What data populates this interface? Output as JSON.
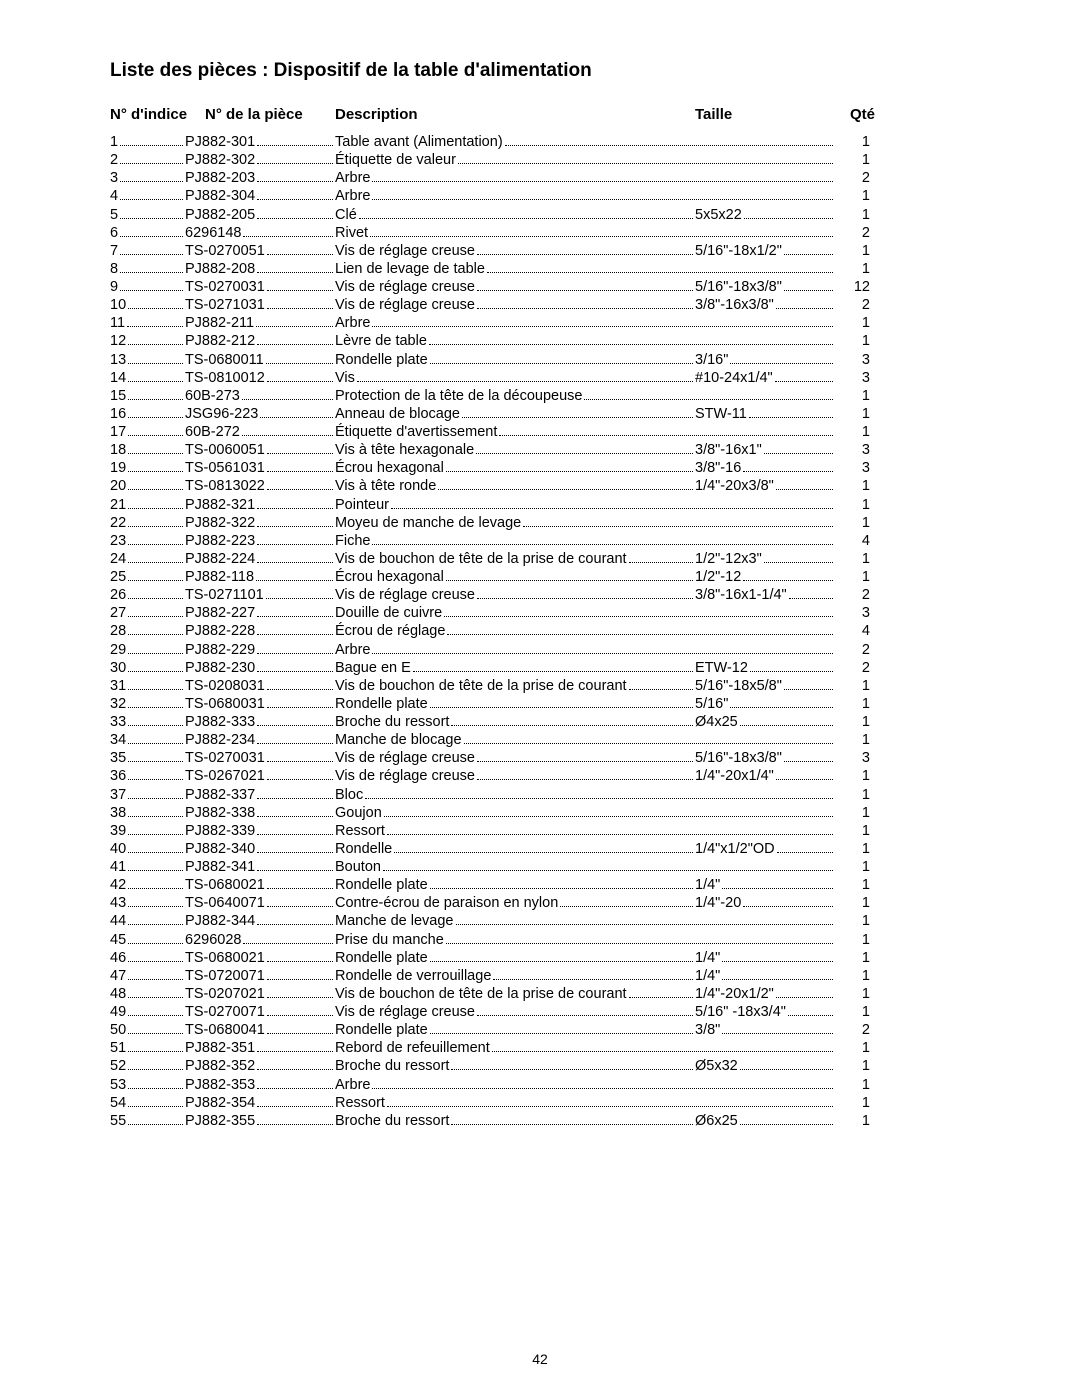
{
  "title": "Liste des pièces : Dispositif de la table d'alimentation",
  "page_number": "42",
  "headers": {
    "index": "N° d'indice",
    "part": "N° de la pièce",
    "description": "Description",
    "size": "Taille",
    "qty": "Qté"
  },
  "rows": [
    {
      "index": "1",
      "part": "PJ882-301",
      "description": "Table avant (Alimentation)",
      "size": "",
      "qty": "1"
    },
    {
      "index": "2",
      "part": "PJ882-302",
      "description": "Étiquette de valeur",
      "size": "",
      "qty": "1"
    },
    {
      "index": "3",
      "part": "PJ882-203",
      "description": "Arbre",
      "size": "",
      "qty": "2"
    },
    {
      "index": "4",
      "part": "PJ882-304",
      "description": "Arbre",
      "size": "",
      "qty": "1"
    },
    {
      "index": "5",
      "part": "PJ882-205",
      "description": "Clé",
      "size": "5x5x22",
      "qty": "1"
    },
    {
      "index": "6",
      "part": "6296148",
      "description": "Rivet",
      "size": "",
      "qty": "2"
    },
    {
      "index": "7",
      "part": "TS-0270051",
      "description": "Vis de réglage creuse",
      "size": "5/16\"-18x1/2\"",
      "qty": "1"
    },
    {
      "index": "8",
      "part": "PJ882-208",
      "description": "Lien de levage de table",
      "size": "",
      "qty": "1"
    },
    {
      "index": "9",
      "part": "TS-0270031",
      "description": "Vis de réglage creuse",
      "size": "5/16\"-18x3/8\"",
      "qty": "12"
    },
    {
      "index": "10",
      "part": "TS-0271031",
      "description": "Vis de réglage creuse",
      "size": "3/8\"-16x3/8\"",
      "qty": "2"
    },
    {
      "index": "11",
      "part": "PJ882-211",
      "description": "Arbre",
      "size": "",
      "qty": "1"
    },
    {
      "index": "12",
      "part": "PJ882-212",
      "description": "Lèvre de table",
      "size": "",
      "qty": "1"
    },
    {
      "index": "13",
      "part": "TS-0680011",
      "description": "Rondelle plate",
      "size": "3/16\"",
      "qty": "3"
    },
    {
      "index": "14",
      "part": "TS-0810012",
      "description": "Vis",
      "size": "#10-24x1/4\"",
      "qty": "3"
    },
    {
      "index": "15",
      "part": "60B-273",
      "description": "Protection de la tête de la découpeuse",
      "size": "",
      "qty": "1"
    },
    {
      "index": "16",
      "part": "JSG96-223",
      "description": "Anneau de blocage",
      "size": "STW-11",
      "qty": "1"
    },
    {
      "index": "17",
      "part": "60B-272",
      "description": "Étiquette d'avertissement",
      "size": "",
      "qty": "1"
    },
    {
      "index": "18",
      "part": "TS-0060051",
      "description": "Vis à tête hexagonale",
      "size": "3/8\"-16x1\"",
      "qty": "3"
    },
    {
      "index": "19",
      "part": "TS-0561031",
      "description": "Écrou hexagonal",
      "size": "3/8\"-16",
      "qty": "3"
    },
    {
      "index": "20",
      "part": "TS-0813022",
      "description": "Vis à tête ronde",
      "size": "1/4\"-20x3/8\"",
      "qty": "1"
    },
    {
      "index": "21",
      "part": "PJ882-321",
      "description": "Pointeur",
      "size": "",
      "qty": "1"
    },
    {
      "index": "22",
      "part": "PJ882-322",
      "description": "Moyeu de manche de levage",
      "size": "",
      "qty": "1"
    },
    {
      "index": "23",
      "part": "PJ882-223",
      "description": "Fiche",
      "size": "",
      "qty": "4"
    },
    {
      "index": "24",
      "part": "PJ882-224",
      "description": "Vis de bouchon de tête de la prise de courant",
      "size": "1/2\"-12x3\"",
      "qty": "1"
    },
    {
      "index": "25",
      "part": "PJ882-118",
      "description": "Écrou hexagonal",
      "size": "1/2\"-12",
      "qty": "1"
    },
    {
      "index": "26",
      "part": "TS-0271101",
      "description": "Vis de réglage creuse",
      "size": "3/8\"-16x1-1/4\"",
      "qty": "2"
    },
    {
      "index": "27",
      "part": "PJ882-227",
      "description": "Douille de cuivre",
      "size": "",
      "qty": "3"
    },
    {
      "index": "28",
      "part": "PJ882-228",
      "description": "Écrou de réglage",
      "size": "",
      "qty": "4"
    },
    {
      "index": "29",
      "part": "PJ882-229",
      "description": "Arbre",
      "size": "",
      "qty": "2"
    },
    {
      "index": "30",
      "part": "PJ882-230",
      "description": "Bague en E",
      "size": "ETW-12",
      "qty": "2"
    },
    {
      "index": "31",
      "part": "TS-0208031",
      "description": "Vis de bouchon de tête de la prise de courant",
      "size": "5/16\"-18x5/8\"",
      "qty": "1"
    },
    {
      "index": "32",
      "part": "TS-0680031",
      "description": "Rondelle plate",
      "size": "5/16\"",
      "qty": "1"
    },
    {
      "index": "33",
      "part": "PJ882-333",
      "description": "Broche du ressort",
      "size": "Ø4x25",
      "qty": "1"
    },
    {
      "index": "34",
      "part": "PJ882-234",
      "description": "Manche de blocage",
      "size": "",
      "qty": "1"
    },
    {
      "index": "35",
      "part": "TS-0270031",
      "description": "Vis de réglage creuse",
      "size": "5/16\"-18x3/8\"",
      "qty": "3"
    },
    {
      "index": "36",
      "part": "TS-0267021",
      "description": "Vis de réglage creuse",
      "size": "1/4\"-20x1/4\"",
      "qty": "1"
    },
    {
      "index": "37",
      "part": "PJ882-337",
      "description": "Bloc",
      "size": "",
      "qty": "1"
    },
    {
      "index": "38",
      "part": "PJ882-338",
      "description": "Goujon",
      "size": "",
      "qty": "1"
    },
    {
      "index": "39",
      "part": "PJ882-339",
      "description": "Ressort",
      "size": "",
      "qty": "1"
    },
    {
      "index": "40",
      "part": "PJ882-340",
      "description": "Rondelle",
      "size": "1/4\"x1/2\"OD",
      "qty": "1"
    },
    {
      "index": "41",
      "part": "PJ882-341",
      "description": "Bouton",
      "size": "",
      "qty": "1"
    },
    {
      "index": "42",
      "part": "TS-0680021",
      "description": "Rondelle plate",
      "size": "1/4\"",
      "qty": "1"
    },
    {
      "index": "43",
      "part": "TS-0640071",
      "description": "Contre-écrou de paraison en nylon",
      "size": "1/4\"-20",
      "qty": "1"
    },
    {
      "index": "44",
      "part": "PJ882-344",
      "description": "Manche de levage",
      "size": "",
      "qty": "1"
    },
    {
      "index": "45",
      "part": "6296028",
      "description": "Prise du manche",
      "size": "",
      "qty": "1"
    },
    {
      "index": "46",
      "part": "TS-0680021",
      "description": "Rondelle plate",
      "size": "1/4\"",
      "qty": "1"
    },
    {
      "index": "47",
      "part": "TS-0720071",
      "description": "Rondelle de verrouillage",
      "size": "1/4\"",
      "qty": "1"
    },
    {
      "index": "48",
      "part": "TS-0207021",
      "description": "Vis de bouchon de tête de la prise de courant",
      "size": "1/4\"-20x1/2\"",
      "qty": "1"
    },
    {
      "index": "49",
      "part": "TS-0270071",
      "description": "Vis de réglage creuse",
      "size": "5/16\" -18x3/4\"",
      "qty": "1"
    },
    {
      "index": "50",
      "part": "TS-0680041",
      "description": "Rondelle plate",
      "size": "3/8\"",
      "qty": "2"
    },
    {
      "index": "51",
      "part": "PJ882-351",
      "description": "Rebord de refeuillement",
      "size": "",
      "qty": "1"
    },
    {
      "index": "52",
      "part": "PJ882-352",
      "description": "Broche du ressort",
      "size": "Ø5x32",
      "qty": "1"
    },
    {
      "index": "53",
      "part": "PJ882-353",
      "description": "Arbre",
      "size": "",
      "qty": "1"
    },
    {
      "index": "54",
      "part": "PJ882-354",
      "description": "Ressort",
      "size": "",
      "qty": "1"
    },
    {
      "index": "55",
      "part": "PJ882-355",
      "description": "Broche du ressort",
      "size": "Ø6x25",
      "qty": "1"
    }
  ]
}
